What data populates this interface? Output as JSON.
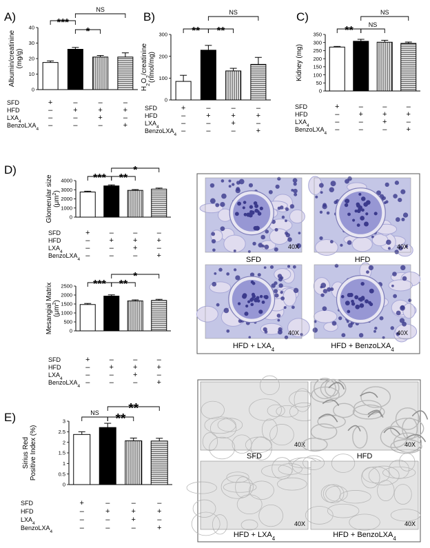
{
  "chart_data": [
    {
      "id": "A",
      "panel_label": "A)",
      "type": "bar",
      "ylabel_lines": [
        "Albumin/creatinine",
        "(mg/g)"
      ],
      "ylim": [
        0,
        40
      ],
      "yticks": [
        0,
        10,
        20,
        30,
        40
      ],
      "categories": [
        "SFD",
        "HFD",
        "HFD + LXA4",
        "HFD + BenzoLXA4"
      ],
      "values": [
        17.5,
        26,
        21,
        21
      ],
      "errors": [
        1,
        1.2,
        1,
        2.7
      ],
      "significance": [
        {
          "a": 0,
          "b": 1,
          "label": "***"
        },
        {
          "a": 1,
          "b": 2,
          "label": "*"
        },
        {
          "a": 1,
          "b": 3,
          "label": "NS"
        }
      ],
      "rows": [
        {
          "label": "SFD",
          "marks": [
            "+",
            "–",
            "–",
            "–"
          ]
        },
        {
          "label": "HFD",
          "marks": [
            "–",
            "+",
            "+",
            "+"
          ]
        },
        {
          "label": "LXA4",
          "marks": [
            "–",
            "–",
            "+",
            "–"
          ]
        },
        {
          "label": "BenzoLXA4",
          "marks": [
            "–",
            "–",
            "–",
            "+"
          ]
        }
      ]
    },
    {
      "id": "B",
      "panel_label": "B)",
      "type": "bar",
      "ylabel_lines": [
        "H2O2/creatinine",
        "(nmol/mg)"
      ],
      "ylim": [
        0,
        300
      ],
      "yticks": [
        0,
        100,
        200,
        300
      ],
      "categories": [
        "SFD",
        "HFD",
        "HFD + LXA4",
        "HFD + BenzoLXA4"
      ],
      "values": [
        85,
        228,
        133,
        163
      ],
      "errors": [
        28,
        22,
        12,
        32
      ],
      "significance": [
        {
          "a": 0,
          "b": 1,
          "label": "**"
        },
        {
          "a": 1,
          "b": 2,
          "label": "**"
        },
        {
          "a": 1,
          "b": 3,
          "label": "NS"
        }
      ],
      "rows": [
        {
          "label": "SFD",
          "marks": [
            "+",
            "–",
            "–",
            "–"
          ]
        },
        {
          "label": "HFD",
          "marks": [
            "–",
            "+",
            "+",
            "+"
          ]
        },
        {
          "label": "LXA4",
          "marks": [
            "–",
            "–",
            "+",
            "–"
          ]
        },
        {
          "label": "BenzoLXA4",
          "marks": [
            "–",
            "–",
            "–",
            "+"
          ]
        }
      ]
    },
    {
      "id": "C",
      "panel_label": "C)",
      "type": "bar",
      "ylabel_lines": [
        "Kidney (mg)"
      ],
      "ylim": [
        0,
        350
      ],
      "yticks": [
        0,
        50,
        100,
        150,
        200,
        250,
        300,
        350
      ],
      "categories": [
        "SFD",
        "HFD",
        "HFD + LXA4",
        "HFD + BenzoLXA4"
      ],
      "values": [
        272,
        308,
        302,
        295
      ],
      "errors": [
        4,
        12,
        12,
        8
      ],
      "significance": [
        {
          "a": 0,
          "b": 1,
          "label": "**"
        },
        {
          "a": 1,
          "b": 2,
          "label": "NS"
        },
        {
          "a": 1,
          "b": 3,
          "label": "NS"
        }
      ],
      "rows": [
        {
          "label": "SFD",
          "marks": [
            "+",
            "–",
            "–",
            "–"
          ]
        },
        {
          "label": "HFD",
          "marks": [
            "–",
            "+",
            "+",
            "+"
          ]
        },
        {
          "label": "LXA4",
          "marks": [
            "–",
            "–",
            "+",
            "–"
          ]
        },
        {
          "label": "BenzoLXA4",
          "marks": [
            "–",
            "–",
            "–",
            "+"
          ]
        }
      ]
    },
    {
      "id": "D1",
      "panel_label": "D)",
      "type": "bar",
      "ylabel_lines": [
        "Glomerular size",
        "(μm2)"
      ],
      "ylim": [
        0,
        4000
      ],
      "yticks": [
        0,
        1000,
        2000,
        3000,
        4000
      ],
      "categories": [
        "SFD",
        "HFD",
        "HFD + LXA4",
        "HFD + BenzoLXA4"
      ],
      "values": [
        2750,
        3420,
        2930,
        3070
      ],
      "errors": [
        90,
        110,
        90,
        110
      ],
      "significance": [
        {
          "a": 0,
          "b": 1,
          "label": "***"
        },
        {
          "a": 1,
          "b": 2,
          "label": "**"
        },
        {
          "a": 1,
          "b": 3,
          "label": "*"
        }
      ],
      "rows": [
        {
          "label": "SFD",
          "marks": [
            "+",
            "–",
            "–",
            "–"
          ]
        },
        {
          "label": "HFD",
          "marks": [
            "–",
            "+",
            "+",
            "+"
          ]
        },
        {
          "label": "LXA4",
          "marks": [
            "–",
            "–",
            "+",
            "–"
          ]
        },
        {
          "label": "BenzoLXA4",
          "marks": [
            "–",
            "–",
            "–",
            "+"
          ]
        }
      ]
    },
    {
      "id": "D2",
      "panel_label": "",
      "type": "bar",
      "ylabel_lines": [
        "Mesangial Matrix",
        "(μm2)"
      ],
      "ylim": [
        0,
        2500
      ],
      "yticks": [
        0,
        500,
        1000,
        1500,
        2000,
        2500
      ],
      "categories": [
        "SFD",
        "HFD",
        "HFD + LXA4",
        "HFD + BenzoLXA4"
      ],
      "values": [
        1470,
        1940,
        1670,
        1700
      ],
      "errors": [
        60,
        70,
        60,
        60
      ],
      "significance": [
        {
          "a": 0,
          "b": 1,
          "label": "***"
        },
        {
          "a": 1,
          "b": 2,
          "label": "**"
        },
        {
          "a": 1,
          "b": 3,
          "label": "*"
        }
      ],
      "rows": [
        {
          "label": "SFD",
          "marks": [
            "+",
            "–",
            "–",
            "–"
          ]
        },
        {
          "label": "HFD",
          "marks": [
            "–",
            "+",
            "+",
            "+"
          ]
        },
        {
          "label": "LXA4",
          "marks": [
            "–",
            "–",
            "+",
            "–"
          ]
        },
        {
          "label": "BenzoLXA4",
          "marks": [
            "–",
            "–",
            "–",
            "+"
          ]
        }
      ]
    },
    {
      "id": "E",
      "panel_label": "E)",
      "type": "bar",
      "ylabel_lines": [
        "Sirius Red",
        "Positive Index (%)"
      ],
      "ylim": [
        0,
        3
      ],
      "yticks": [
        0,
        0.5,
        1,
        1.5,
        2,
        2.5,
        3
      ],
      "categories": [
        "SFD",
        "HFD",
        "HFD + LXA4",
        "HFD + BenzoLXA4"
      ],
      "values": [
        2.37,
        2.7,
        2.07,
        2.06
      ],
      "errors": [
        0.13,
        0.2,
        0.13,
        0.13
      ],
      "significance": [
        {
          "a": 0,
          "b": 1,
          "label": "NS"
        },
        {
          "a": 1,
          "b": 2,
          "label": "**"
        },
        {
          "a": 1,
          "b": 3,
          "label": "**"
        }
      ],
      "rows": [
        {
          "label": "SFD",
          "marks": [
            "+",
            "–",
            "–",
            "–"
          ]
        },
        {
          "label": "HFD",
          "marks": [
            "–",
            "+",
            "+",
            "+"
          ]
        },
        {
          "label": "LXA4",
          "marks": [
            "–",
            "–",
            "+",
            "–"
          ]
        },
        {
          "label": "BenzoLXA4",
          "marks": [
            "–",
            "–",
            "–",
            "+"
          ]
        }
      ]
    }
  ],
  "images": {
    "pas": {
      "panels": [
        "SFD",
        "HFD",
        "HFD + LXA4",
        "HFD + BenzoLXA4"
      ],
      "magnification": "40X",
      "stain_colors": [
        "#c4c6e6",
        "#8e8ed0",
        "#3b3a8c",
        "#e0dcef"
      ]
    },
    "sirius": {
      "panels": [
        "SFD",
        "HFD",
        "HFD + LXA4",
        "HFD + BenzoLXA4"
      ],
      "magnification": "40X",
      "stain_colors": [
        "#e4e4e4",
        "#b8b8b8"
      ]
    }
  }
}
